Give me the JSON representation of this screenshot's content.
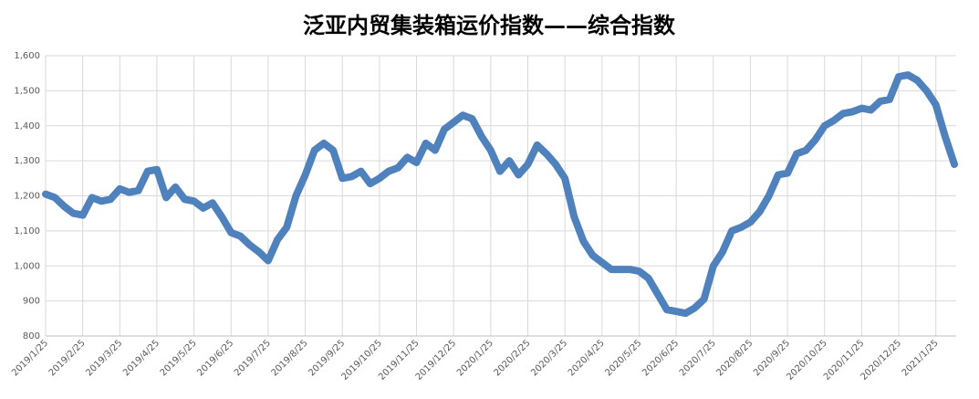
{
  "chart_data": {
    "type": "line",
    "title": "泛亚内贸集装箱运价指数——综合指数",
    "categories": [
      "2019/1/25",
      null,
      null,
      null,
      "2019/2/25",
      null,
      null,
      null,
      "2019/3/25",
      null,
      null,
      null,
      "2019/4/25",
      null,
      null,
      null,
      "2019/5/25",
      null,
      null,
      null,
      "2019/6/25",
      null,
      null,
      null,
      "2019/7/25",
      null,
      null,
      null,
      "2019/8/25",
      null,
      null,
      null,
      "2019/9/25",
      null,
      null,
      null,
      "2019/10/25",
      null,
      null,
      null,
      "2019/11/25",
      null,
      null,
      null,
      "2019/12/25",
      null,
      null,
      null,
      "2020/1/25",
      null,
      null,
      null,
      "2020/2/25",
      null,
      null,
      null,
      "2020/3/25",
      null,
      null,
      null,
      "2020/4/25",
      null,
      null,
      null,
      "2020/5/25",
      null,
      null,
      null,
      "2020/6/25",
      null,
      null,
      null,
      "2020/7/25",
      null,
      null,
      null,
      "2020/8/25",
      null,
      null,
      null,
      "2020/9/25",
      null,
      null,
      null,
      "2020/10/25",
      null,
      null,
      null,
      "2020/11/25",
      null,
      null,
      null,
      "2020/12/25",
      null,
      null,
      null,
      "2021/1/25",
      null,
      null
    ],
    "series": [
      {
        "name": "综合指数",
        "color": "#4f81bd",
        "values": [
          1205,
          1195,
          1170,
          1150,
          1145,
          1195,
          1185,
          1190,
          1220,
          1210,
          1215,
          1270,
          1275,
          1195,
          1225,
          1190,
          1185,
          1165,
          1180,
          1140,
          1095,
          1085,
          1060,
          1040,
          1015,
          1075,
          1110,
          1200,
          1260,
          1330,
          1350,
          1330,
          1250,
          1255,
          1270,
          1235,
          1250,
          1270,
          1280,
          1310,
          1295,
          1350,
          1330,
          1390,
          1410,
          1430,
          1420,
          1370,
          1330,
          1270,
          1300,
          1260,
          1290,
          1345,
          1320,
          1290,
          1250,
          1140,
          1070,
          1030,
          1010,
          990,
          990,
          990,
          985,
          965,
          920,
          875,
          870,
          865,
          880,
          905,
          1000,
          1040,
          1100,
          1110,
          1125,
          1155,
          1200,
          1260,
          1265,
          1320,
          1330,
          1360,
          1400,
          1415,
          1435,
          1440,
          1450,
          1445,
          1470,
          1475,
          1540,
          1545,
          1530,
          1500,
          1460,
          1370,
          1290
        ]
      }
    ],
    "ylim": [
      800,
      1600
    ],
    "yticks": [
      800,
      900,
      {
        "value": 1000,
        "label": "1,000"
      },
      {
        "value": 1100,
        "label": "1,100"
      },
      {
        "value": 1200,
        "label": "1,200"
      },
      {
        "value": 1300,
        "label": "1,300"
      },
      {
        "value": 1400,
        "label": "1,400"
      },
      {
        "value": 1500,
        "label": "1,500"
      },
      {
        "value": 1600,
        "label": "1,600"
      }
    ],
    "grid": true
  }
}
